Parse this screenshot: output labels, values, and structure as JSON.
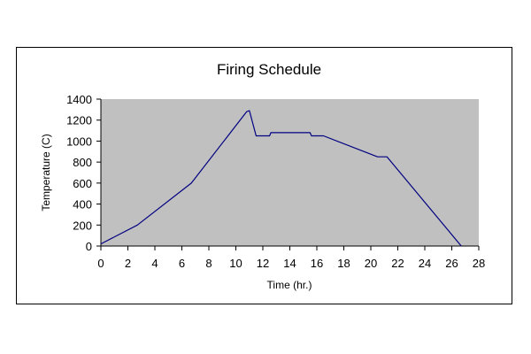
{
  "chart_data": {
    "type": "line",
    "title": "Firing Schedule",
    "xlabel": "Time (hr.)",
    "ylabel": "Temperature (C)",
    "xlim": [
      0,
      28
    ],
    "ylim": [
      0,
      1400
    ],
    "x_ticks": [
      0,
      2,
      4,
      6,
      8,
      10,
      12,
      14,
      16,
      18,
      20,
      22,
      24,
      26,
      28
    ],
    "y_ticks": [
      0,
      200,
      400,
      600,
      800,
      1000,
      1200,
      1400
    ],
    "grid": false,
    "legend": "none",
    "plot_background": "#c0c0c0",
    "series": [
      {
        "color": "#000080",
        "x": [
          0,
          2.7,
          6.7,
          10.8,
          11,
          11.5,
          12.5,
          12.6,
          15.5,
          15.6,
          16.5,
          20.5,
          21.2,
          26.7
        ],
        "y": [
          20,
          200,
          600,
          1280,
          1290,
          1050,
          1050,
          1080,
          1080,
          1050,
          1050,
          850,
          850,
          0
        ]
      }
    ]
  }
}
